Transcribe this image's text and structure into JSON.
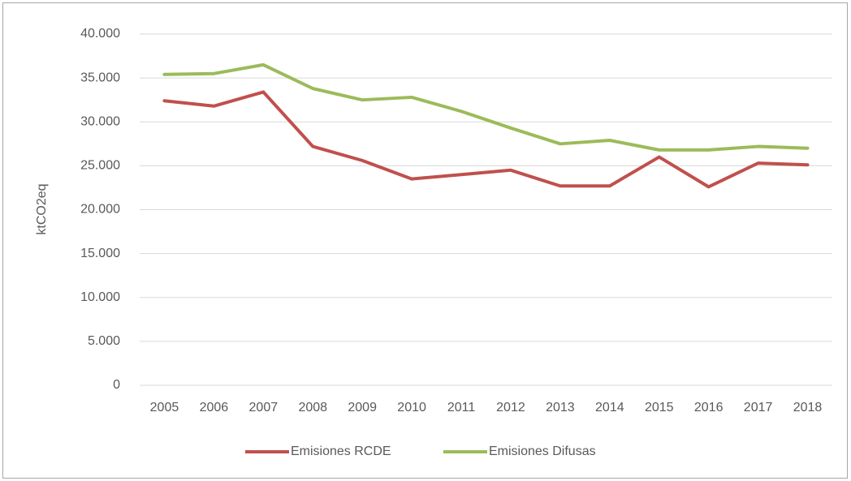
{
  "chart_data": {
    "type": "line",
    "y_label": "ktCO2eq",
    "categories": [
      "2005",
      "2006",
      "2007",
      "2008",
      "2009",
      "2010",
      "2011",
      "2012",
      "2013",
      "2014",
      "2015",
      "2016",
      "2017",
      "2018"
    ],
    "series": [
      {
        "name": "Emisiones RCDE",
        "color": "#c0504d",
        "values": [
          32400,
          31800,
          33400,
          27200,
          25600,
          23500,
          24000,
          24500,
          22700,
          22700,
          26000,
          22600,
          25300,
          25100
        ]
      },
      {
        "name": "Emisiones Difusas",
        "color": "#9bbb59",
        "values": [
          35400,
          35500,
          36500,
          33800,
          32500,
          32800,
          31200,
          29300,
          27500,
          27900,
          26800,
          26800,
          27200,
          27000
        ]
      }
    ],
    "ylim": [
      0,
      40000
    ],
    "yticks": [
      0,
      {
        "value": 5000,
        "label": "5.000"
      },
      {
        "value": 10000,
        "label": "10.000"
      },
      {
        "value": 15000,
        "label": "15.000"
      },
      {
        "value": 20000,
        "label": "20.000"
      },
      {
        "value": 25000,
        "label": "25.000"
      },
      {
        "value": 30000,
        "label": "30.000"
      },
      {
        "value": 35000,
        "label": "35.000"
      },
      {
        "value": 40000,
        "label": "40.000"
      }
    ],
    "grid": true,
    "legend": "bottom"
  }
}
